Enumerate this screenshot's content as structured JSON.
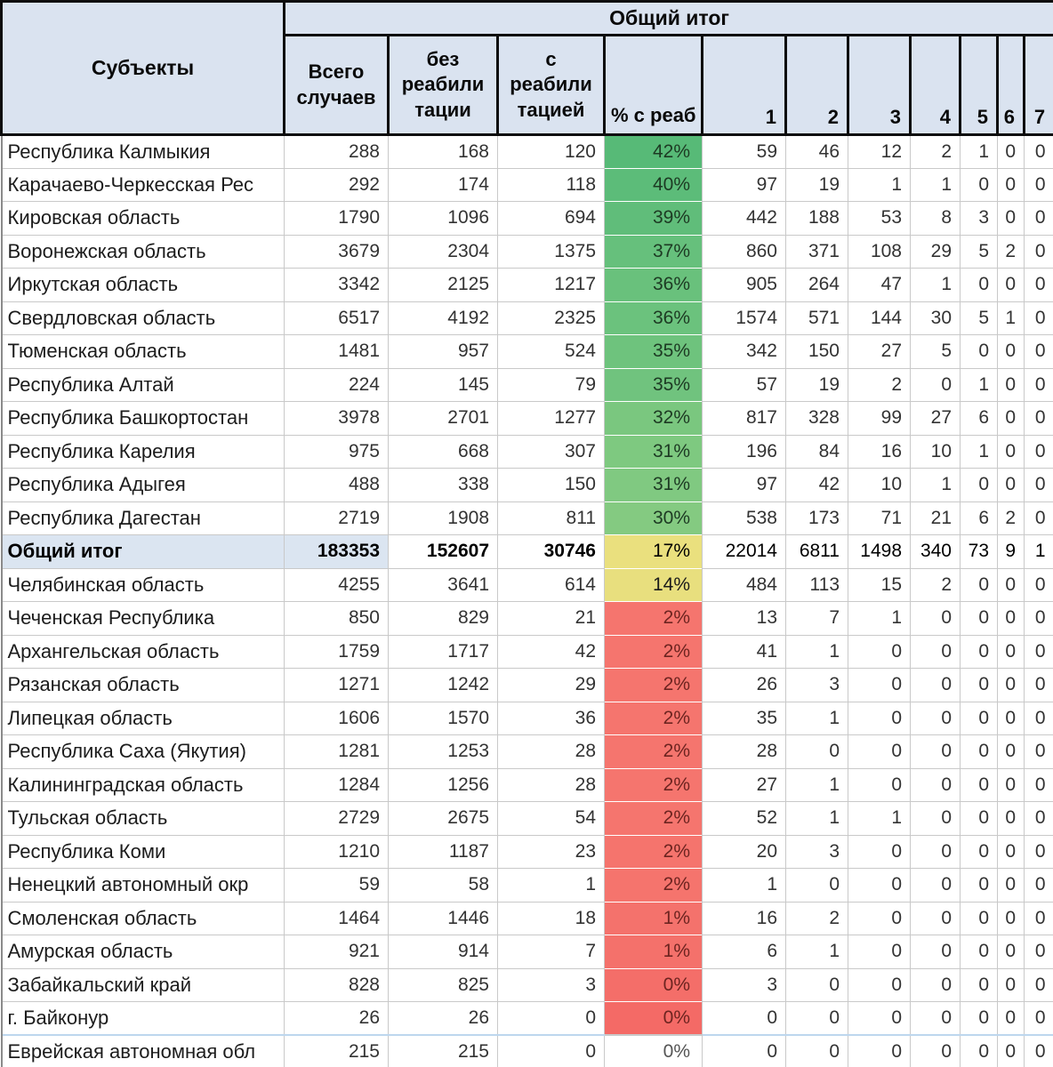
{
  "app": "spreadsheet-table",
  "header": {
    "subjects": "Субъекты",
    "grand_total": "Общий итог",
    "cols": {
      "total": "Всего\nслучаев",
      "without": "без\nреабили\nтации",
      "with": "с\nреабили\nтацией",
      "pct": "% с реаб",
      "c1": "1",
      "c2": "2",
      "c3": "3",
      "c4": "4",
      "c5": "5",
      "c6": "6",
      "c7": "7"
    }
  },
  "colors": {
    "header_bg": "#DAE3F0",
    "total_row_bg": "#DBE5F1",
    "grid_line": "#c9c9c9",
    "border_dark": "#0d0d0d",
    "separator_blue": "#bdd7ee",
    "scale_green": "#63BE7B",
    "scale_yellow": "#EAE07E",
    "scale_red": "#F5756E"
  },
  "rows": [
    {
      "name": "Республика Калмыкия",
      "total": "288",
      "without": "168",
      "with": "120",
      "pct": "42%",
      "fill": "#57BA77",
      "band": "green",
      "c": [
        "59",
        "46",
        "12",
        "2",
        "1",
        "0",
        "0"
      ],
      "is_total": false
    },
    {
      "name": "Карачаево-Черкесская Рес",
      "total": "292",
      "without": "174",
      "with": "118",
      "pct": "40%",
      "fill": "#5CBC79",
      "band": "green",
      "c": [
        "97",
        "19",
        "1",
        "1",
        "0",
        "0",
        "0"
      ],
      "is_total": false
    },
    {
      "name": "Кировская область",
      "total": "1790",
      "without": "1096",
      "with": "694",
      "pct": "39%",
      "fill": "#60BD7A",
      "band": "green",
      "c": [
        "442",
        "188",
        "53",
        "8",
        "3",
        "0",
        "0"
      ],
      "is_total": false
    },
    {
      "name": "Воронежская область",
      "total": "3679",
      "without": "2304",
      "with": "1375",
      "pct": "37%",
      "fill": "#66C07C",
      "band": "green",
      "c": [
        "860",
        "371",
        "108",
        "29",
        "5",
        "2",
        "0"
      ],
      "is_total": false
    },
    {
      "name": "Иркутская область",
      "total": "3342",
      "without": "2125",
      "with": "1217",
      "pct": "36%",
      "fill": "#69C17C",
      "band": "green",
      "c": [
        "905",
        "264",
        "47",
        "1",
        "0",
        "0",
        "0"
      ],
      "is_total": false
    },
    {
      "name": "Свердловская область",
      "total": "6517",
      "without": "4192",
      "with": "2325",
      "pct": "36%",
      "fill": "#6BC27D",
      "band": "green",
      "c": [
        "1574",
        "571",
        "144",
        "30",
        "5",
        "1",
        "0"
      ],
      "is_total": false
    },
    {
      "name": "Тюменская область",
      "total": "1481",
      "without": "957",
      "with": "524",
      "pct": "35%",
      "fill": "#6EC37D",
      "band": "green",
      "c": [
        "342",
        "150",
        "27",
        "5",
        "0",
        "0",
        "0"
      ],
      "is_total": false
    },
    {
      "name": "Республика Алтай",
      "total": "224",
      "without": "145",
      "with": "79",
      "pct": "35%",
      "fill": "#70C37E",
      "band": "green",
      "c": [
        "57",
        "19",
        "2",
        "0",
        "1",
        "0",
        "0"
      ],
      "is_total": false
    },
    {
      "name": "Республика Башкортостан",
      "total": "3978",
      "without": "2701",
      "with": "1277",
      "pct": "32%",
      "fill": "#7AC77F",
      "band": "green",
      "c": [
        "817",
        "328",
        "99",
        "27",
        "6",
        "0",
        "0"
      ],
      "is_total": false
    },
    {
      "name": "Республика Карелия",
      "total": "975",
      "without": "668",
      "with": "307",
      "pct": "31%",
      "fill": "#7EC980",
      "band": "green",
      "c": [
        "196",
        "84",
        "16",
        "10",
        "1",
        "0",
        "0"
      ],
      "is_total": false
    },
    {
      "name": "Республика Адыгея",
      "total": "488",
      "without": "338",
      "with": "150",
      "pct": "31%",
      "fill": "#80C981",
      "band": "green",
      "c": [
        "97",
        "42",
        "10",
        "1",
        "0",
        "0",
        "0"
      ],
      "is_total": false
    },
    {
      "name": "Республика Дагестан",
      "total": "2719",
      "without": "1908",
      "with": "811",
      "pct": "30%",
      "fill": "#84CA81",
      "band": "green",
      "c": [
        "538",
        "173",
        "71",
        "21",
        "6",
        "2",
        "0"
      ],
      "is_total": false
    },
    {
      "name": "Общий итог",
      "total": "183353",
      "without": "152607",
      "with": "30746",
      "pct": "17%",
      "fill": "#EAE07E",
      "band": "yellow",
      "c": [
        "22014",
        "6811",
        "1498",
        "340",
        "73",
        "9",
        "1"
      ],
      "is_total": true
    },
    {
      "name": "Челябинская область",
      "total": "4255",
      "without": "3641",
      "with": "614",
      "pct": "14%",
      "fill": "#E8DF7E",
      "band": "yellow",
      "c": [
        "484",
        "113",
        "15",
        "2",
        "0",
        "0",
        "0"
      ],
      "is_total": false
    },
    {
      "name": "Чеченская Республика",
      "total": "850",
      "without": "829",
      "with": "21",
      "pct": "2%",
      "fill": "#F5756E",
      "band": "red",
      "c": [
        "13",
        "7",
        "1",
        "0",
        "0",
        "0",
        "0"
      ],
      "is_total": false
    },
    {
      "name": "Архангельская область",
      "total": "1759",
      "without": "1717",
      "with": "42",
      "pct": "2%",
      "fill": "#F5756E",
      "band": "red",
      "c": [
        "41",
        "1",
        "0",
        "0",
        "0",
        "0",
        "0"
      ],
      "is_total": false
    },
    {
      "name": "Рязанская область",
      "total": "1271",
      "without": "1242",
      "with": "29",
      "pct": "2%",
      "fill": "#F5756E",
      "band": "red",
      "c": [
        "26",
        "3",
        "0",
        "0",
        "0",
        "0",
        "0"
      ],
      "is_total": false
    },
    {
      "name": "Липецкая область",
      "total": "1606",
      "without": "1570",
      "with": "36",
      "pct": "2%",
      "fill": "#F5756E",
      "band": "red",
      "c": [
        "35",
        "1",
        "0",
        "0",
        "0",
        "0",
        "0"
      ],
      "is_total": false
    },
    {
      "name": "Республика Саха (Якутия)",
      "total": "1281",
      "without": "1253",
      "with": "28",
      "pct": "2%",
      "fill": "#F5756E",
      "band": "red",
      "c": [
        "28",
        "0",
        "0",
        "0",
        "0",
        "0",
        "0"
      ],
      "is_total": false
    },
    {
      "name": "Калининградская область",
      "total": "1284",
      "without": "1256",
      "with": "28",
      "pct": "2%",
      "fill": "#F5756E",
      "band": "red",
      "c": [
        "27",
        "1",
        "0",
        "0",
        "0",
        "0",
        "0"
      ],
      "is_total": false
    },
    {
      "name": "Тульская область",
      "total": "2729",
      "without": "2675",
      "with": "54",
      "pct": "2%",
      "fill": "#F5756E",
      "band": "red",
      "c": [
        "52",
        "1",
        "1",
        "0",
        "0",
        "0",
        "0"
      ],
      "is_total": false
    },
    {
      "name": "Республика Коми",
      "total": "1210",
      "without": "1187",
      "with": "23",
      "pct": "2%",
      "fill": "#F5746D",
      "band": "red",
      "c": [
        "20",
        "3",
        "0",
        "0",
        "0",
        "0",
        "0"
      ],
      "is_total": false
    },
    {
      "name": "Ненецкий автономный окр",
      "total": "59",
      "without": "58",
      "with": "1",
      "pct": "2%",
      "fill": "#F5746D",
      "band": "red",
      "c": [
        "1",
        "0",
        "0",
        "0",
        "0",
        "0",
        "0"
      ],
      "is_total": false
    },
    {
      "name": "Смоленская область",
      "total": "1464",
      "without": "1446",
      "with": "18",
      "pct": "1%",
      "fill": "#F4726C",
      "band": "red",
      "c": [
        "16",
        "2",
        "0",
        "0",
        "0",
        "0",
        "0"
      ],
      "is_total": false
    },
    {
      "name": "Амурская область",
      "total": "921",
      "without": "914",
      "with": "7",
      "pct": "1%",
      "fill": "#F4716B",
      "band": "red",
      "c": [
        "6",
        "1",
        "0",
        "0",
        "0",
        "0",
        "0"
      ],
      "is_total": false
    },
    {
      "name": "Забайкальский край",
      "total": "828",
      "without": "825",
      "with": "3",
      "pct": "0%",
      "fill": "#F46E69",
      "band": "red",
      "c": [
        "3",
        "0",
        "0",
        "0",
        "0",
        "0",
        "0"
      ],
      "is_total": false
    },
    {
      "name": "г. Байконур",
      "total": "26",
      "without": "26",
      "with": "0",
      "pct": "0%",
      "fill": "#F46A66",
      "band": "red",
      "c": [
        "0",
        "0",
        "0",
        "0",
        "0",
        "0",
        "0"
      ],
      "is_total": false
    },
    {
      "name": "Еврейская автономная обл",
      "total": "215",
      "without": "215",
      "with": "0",
      "pct": "0%",
      "fill": "",
      "band": "none",
      "c": [
        "0",
        "0",
        "0",
        "0",
        "0",
        "0",
        "0"
      ],
      "is_total": false,
      "separator_above": true
    }
  ]
}
